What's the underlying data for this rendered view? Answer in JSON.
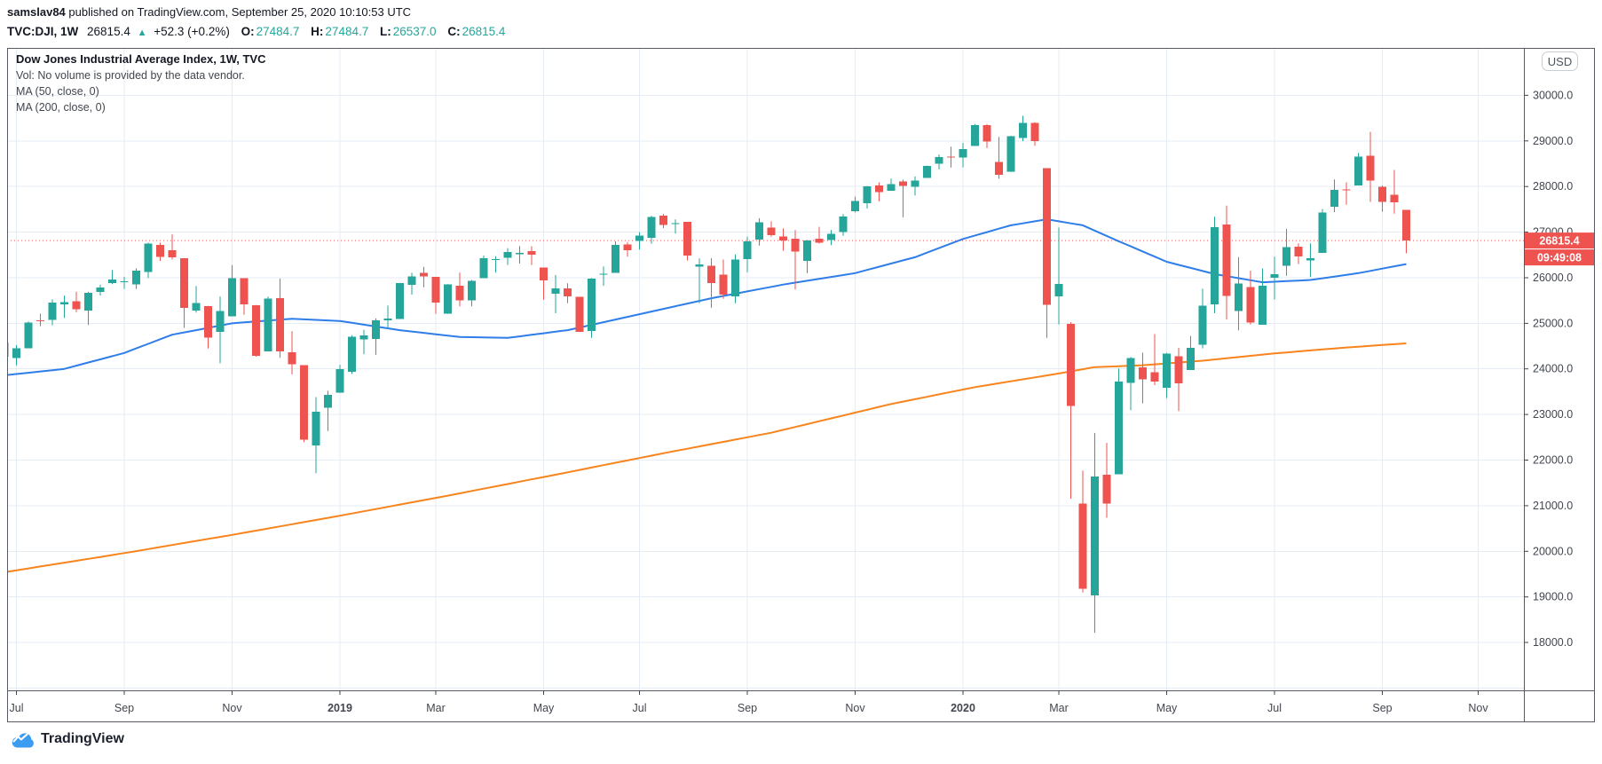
{
  "header": {
    "author": "samslav84",
    "published": " published on TradingView.com, September 25, 2020 10:10:53 UTC",
    "symbol": "TVC:DJI, 1W",
    "price": "26815.4",
    "direction_icon": "▲",
    "change": "+52.3 (+0.2%)",
    "ohlc": [
      {
        "label": "O:",
        "value": "27484.7"
      },
      {
        "label": "H:",
        "value": "27484.7"
      },
      {
        "label": "L:",
        "value": "26537.0"
      },
      {
        "label": "C:",
        "value": "26815.4"
      }
    ]
  },
  "legend": {
    "title": "Dow Jones Industrial Average Index, 1W, TVC",
    "vol": "Vol: No volume is provided by the data vendor.",
    "ma50": "MA (50, close, 0)",
    "ma200": "MA (200, close, 0)"
  },
  "axis": {
    "currency_badge": "USD",
    "last_price_label": "26815.4",
    "countdown_label": "09:49:08"
  },
  "watermark": {
    "brand": "TradingView"
  },
  "chart_data": {
    "type": "candlestick",
    "title": "Dow Jones Industrial Average Index, weekly",
    "last_price": 26815.4,
    "price_axis": {
      "ticks": [
        18000,
        19000,
        20000,
        21000,
        22000,
        23000,
        24000,
        25000,
        26000,
        27000,
        28000,
        29000,
        30000
      ],
      "grid_extra": [
        17000
      ],
      "visible_min": 16950,
      "visible_max": 31040
    },
    "time_ticks": [
      {
        "label": "Jul",
        "week": 1
      },
      {
        "label": "Sep",
        "week": 10
      },
      {
        "label": "Nov",
        "week": 19
      },
      {
        "label": "2019",
        "week": 28,
        "bold": true
      },
      {
        "label": "Mar",
        "week": 36
      },
      {
        "label": "May",
        "week": 45
      },
      {
        "label": "Jul",
        "week": 53
      },
      {
        "label": "Sep",
        "week": 62
      },
      {
        "label": "Nov",
        "week": 71
      },
      {
        "label": "2020",
        "week": 80,
        "bold": true
      },
      {
        "label": "Mar",
        "week": 88
      },
      {
        "label": "May",
        "week": 97
      },
      {
        "label": "Jul",
        "week": 106
      },
      {
        "label": "Sep",
        "week": 115
      },
      {
        "label": "Nov",
        "week": 123
      }
    ],
    "candles": [
      [
        24580,
        24601,
        23997,
        24271
      ],
      [
        24237,
        24520,
        24077,
        24456
      ],
      [
        24456,
        25044,
        24456,
        25019
      ],
      [
        25064,
        25211,
        24936,
        25058
      ],
      [
        25073,
        25527,
        24957,
        25451
      ],
      [
        25415,
        25608,
        25120,
        25463
      ],
      [
        25482,
        25692,
        25243,
        25313
      ],
      [
        25280,
        25690,
        24965,
        25669
      ],
      [
        25690,
        25845,
        25608,
        25790
      ],
      [
        25882,
        26167,
        25857,
        25965
      ],
      [
        25916,
        26019,
        25754,
        25917
      ],
      [
        25853,
        26205,
        25755,
        26154
      ],
      [
        26127,
        26769,
        25992,
        26744
      ],
      [
        26720,
        26769,
        26370,
        26458
      ],
      [
        26598,
        26951,
        26400,
        26447
      ],
      [
        26430,
        26430,
        24899,
        25340
      ],
      [
        25277,
        25817,
        25234,
        25444
      ],
      [
        25380,
        25380,
        24446,
        24688
      ],
      [
        24811,
        25588,
        24122,
        25271
      ],
      [
        25152,
        26278,
        25152,
        25989
      ],
      [
        25988,
        25988,
        25186,
        25413
      ],
      [
        25400,
        25400,
        24268,
        24286
      ],
      [
        24384,
        25587,
        24384,
        25538
      ],
      [
        25548,
        25980,
        24242,
        24389
      ],
      [
        24360,
        24828,
        23881,
        24101
      ],
      [
        24080,
        24080,
        22396,
        22445
      ],
      [
        22317,
        23381,
        21713,
        23062
      ],
      [
        23153,
        23520,
        22638,
        23433
      ],
      [
        23474,
        24090,
        23474,
        23996
      ],
      [
        23939,
        24740,
        23887,
        24706
      ],
      [
        24644,
        24860,
        24323,
        24737
      ],
      [
        24660,
        25110,
        24308,
        25064
      ],
      [
        25062,
        25391,
        24883,
        25106
      ],
      [
        25093,
        25885,
        25093,
        25883
      ],
      [
        25845,
        26110,
        25630,
        26032
      ],
      [
        26107,
        26241,
        25790,
        26026
      ],
      [
        26019,
        26019,
        25209,
        25450
      ],
      [
        25208,
        25860,
        25208,
        25849
      ],
      [
        25820,
        26110,
        25372,
        25502
      ],
      [
        25502,
        25950,
        25372,
        25929
      ],
      [
        25990,
        26487,
        25990,
        26425
      ],
      [
        26408,
        26470,
        26110,
        26412
      ],
      [
        26440,
        26650,
        26280,
        26560
      ],
      [
        26511,
        26696,
        26310,
        26543
      ],
      [
        26580,
        26690,
        26280,
        26505
      ],
      [
        26220,
        26220,
        25517,
        25942
      ],
      [
        25647,
        26060,
        25222,
        25764
      ],
      [
        25769,
        25877,
        25443,
        25586
      ],
      [
        25580,
        25580,
        24809,
        24815
      ],
      [
        24830,
        25990,
        24680,
        25984
      ],
      [
        26085,
        26249,
        25823,
        26090
      ],
      [
        26110,
        26798,
        26110,
        26719
      ],
      [
        26728,
        26779,
        26463,
        26600
      ],
      [
        26805,
        27000,
        26616,
        26922
      ],
      [
        26870,
        27359,
        26744,
        27332
      ],
      [
        27357,
        27398,
        27087,
        27154
      ],
      [
        27180,
        27280,
        26968,
        27192
      ],
      [
        27221,
        27221,
        26378,
        26485
      ],
      [
        26240,
        26426,
        25440,
        26287
      ],
      [
        26260,
        26427,
        25339,
        25886
      ],
      [
        26065,
        26399,
        25536,
        25629
      ],
      [
        25591,
        26514,
        25441,
        26403
      ],
      [
        26405,
        26901,
        26118,
        26797
      ],
      [
        26835,
        27306,
        26704,
        27219
      ],
      [
        27103,
        27237,
        26900,
        26935
      ],
      [
        26905,
        27080,
        26591,
        26820
      ],
      [
        26852,
        27046,
        25743,
        26574
      ],
      [
        26370,
        26829,
        26103,
        26817
      ],
      [
        26852,
        27116,
        26749,
        26770
      ],
      [
        26830,
        27046,
        26715,
        26958
      ],
      [
        27006,
        27399,
        26918,
        27347
      ],
      [
        27462,
        27775,
        27432,
        27681
      ],
      [
        27633,
        28014,
        27517,
        28005
      ],
      [
        28020,
        28090,
        27675,
        27876
      ],
      [
        27904,
        28174,
        27904,
        28051
      ],
      [
        28109,
        28151,
        27325,
        28015
      ],
      [
        27999,
        28224,
        27801,
        28135
      ],
      [
        28191,
        28460,
        28191,
        28455
      ],
      [
        28497,
        28702,
        28376,
        28645
      ],
      [
        28654,
        28873,
        28418,
        28634
      ],
      [
        28639,
        28957,
        28418,
        28824
      ],
      [
        28890,
        29373,
        28890,
        29348
      ],
      [
        29349,
        29368,
        28843,
        28990
      ],
      [
        28543,
        29087,
        28169,
        28256
      ],
      [
        28320,
        29114,
        28320,
        29103
      ],
      [
        29062,
        29551,
        28995,
        29398
      ],
      [
        29399,
        29409,
        28892,
        28992
      ],
      [
        28403,
        28403,
        24681,
        25409
      ],
      [
        25591,
        27102,
        24976,
        25865
      ],
      [
        24992,
        25020,
        21154,
        23185
      ],
      [
        21050,
        21768,
        19094,
        19173
      ],
      [
        19028,
        22595,
        18213,
        21636
      ],
      [
        21678,
        22378,
        20735,
        21052
      ],
      [
        21693,
        24009,
        21693,
        23719
      ],
      [
        23698,
        24264,
        23095,
        24242
      ],
      [
        24034,
        24357,
        23244,
        23775
      ],
      [
        23928,
        24764,
        23645,
        23723
      ],
      [
        23581,
        24349,
        23361,
        24331
      ],
      [
        24282,
        24464,
        23072,
        23685
      ],
      [
        23978,
        24718,
        23978,
        24465
      ],
      [
        24527,
        25758,
        24451,
        25383
      ],
      [
        25420,
        27338,
        25222,
        27111
      ],
      [
        27170,
        27580,
        25082,
        25606
      ],
      [
        25270,
        26451,
        24843,
        25871
      ],
      [
        25798,
        26154,
        24971,
        25016
      ],
      [
        24971,
        26204,
        24971,
        25827
      ],
      [
        25996,
        26459,
        25523,
        26075
      ],
      [
        26263,
        27071,
        26043,
        26672
      ],
      [
        26681,
        26753,
        26300,
        26470
      ],
      [
        26379,
        26754,
        26013,
        26428
      ],
      [
        26542,
        27508,
        26542,
        27433
      ],
      [
        27560,
        28155,
        27437,
        27931
      ],
      [
        27932,
        28092,
        27600,
        27930
      ],
      [
        28025,
        28733,
        28025,
        28654
      ],
      [
        28680,
        29199,
        27664,
        28133
      ],
      [
        27999,
        28021,
        27447,
        27666
      ],
      [
        27816,
        28364,
        27407,
        27657
      ],
      [
        27484.7,
        27484.7,
        26537.0,
        26815.4
      ]
    ],
    "ma50": [
      [
        0,
        23860
      ],
      [
        5,
        24000
      ],
      [
        10,
        24350
      ],
      [
        14,
        24750
      ],
      [
        19,
        25000
      ],
      [
        24,
        25100
      ],
      [
        28,
        25050
      ],
      [
        33,
        24850
      ],
      [
        38,
        24700
      ],
      [
        42,
        24680
      ],
      [
        47,
        24850
      ],
      [
        53,
        25200
      ],
      [
        59,
        25550
      ],
      [
        65,
        25850
      ],
      [
        71,
        26100
      ],
      [
        76,
        26450
      ],
      [
        80,
        26850
      ],
      [
        84,
        27150
      ],
      [
        87,
        27280
      ],
      [
        90,
        27150
      ],
      [
        93,
        26800
      ],
      [
        97,
        26350
      ],
      [
        101,
        26080
      ],
      [
        105,
        25900
      ],
      [
        109,
        25950
      ],
      [
        113,
        26100
      ],
      [
        117,
        26300
      ]
    ],
    "ma200": [
      [
        0,
        19540
      ],
      [
        10,
        19960
      ],
      [
        19,
        20360
      ],
      [
        28,
        20780
      ],
      [
        37,
        21220
      ],
      [
        46,
        21680
      ],
      [
        55,
        22150
      ],
      [
        64,
        22600
      ],
      [
        74,
        23230
      ],
      [
        81,
        23600
      ],
      [
        88,
        23900
      ],
      [
        91,
        24040
      ],
      [
        95,
        24080
      ],
      [
        100,
        24180
      ],
      [
        106,
        24340
      ],
      [
        112,
        24470
      ],
      [
        117,
        24560
      ]
    ],
    "colors": {
      "up": "#26a69a",
      "down": "#ef5350",
      "ma50": "#2e7de9",
      "ma200": "#f7841c",
      "grid": "#e6ecf4",
      "frame": "#555a64",
      "axis_text": "#42464f",
      "label_text": "#ffffff",
      "brand_blue": "#3b9cf1"
    },
    "legend_position": "top-left",
    "grid": true
  }
}
